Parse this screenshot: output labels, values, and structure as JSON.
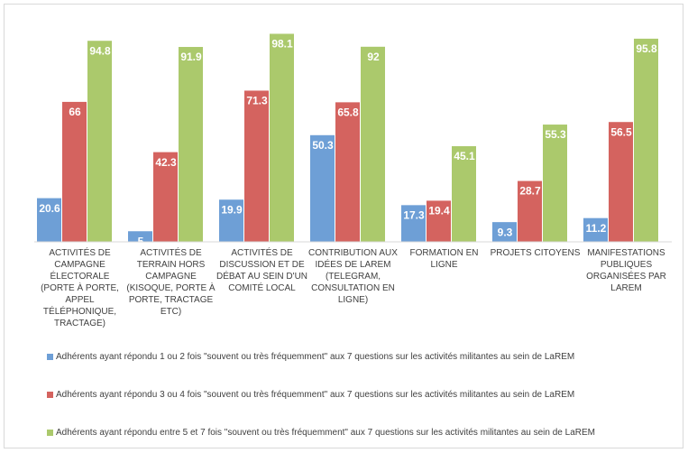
{
  "chart_data": {
    "type": "bar",
    "categories": [
      "Activités de campagne électorale (porte à porte, appel téléphonique, tractage)",
      "Activités de terrain hors campagne (kisoque, porte à porte, tractage etc)",
      "Activités de discussion et de débat au sein d'un comité local",
      "Contribution aux idées de LaREM (telegram, consultation en ligne)",
      "Formation en ligne",
      "Projets citoyens",
      "Manifestations publiques organisées par LaREM"
    ],
    "series": [
      {
        "name": "Adhérents ayant répondu 1 ou 2 fois \"souvent ou très fréquemment\" aux 7 questions sur les activités militantes au sein de LaREM",
        "color": "#6e9fd6",
        "values": [
          20.6,
          5,
          19.9,
          50.3,
          17.3,
          9.3,
          11.2
        ]
      },
      {
        "name": "Adhérents ayant répondu 3 ou 4 fois \"souvent ou très fréquemment\" aux 7 questions sur les activités militantes au sein de LaREM",
        "color": "#d4635f",
        "values": [
          66,
          42.3,
          71.3,
          65.8,
          19.4,
          28.7,
          56.5
        ]
      },
      {
        "name": "Adhérents ayant répondu entre 5 et 7 fois \"souvent ou très fréquemment\" aux 7 questions sur les activités militantes au sein de LaREM",
        "color": "#abc96c",
        "values": [
          94.8,
          91.9,
          98.1,
          92,
          45.1,
          55.3,
          95.8
        ]
      }
    ],
    "ylim": [
      0,
      100
    ],
    "legend": "bottom"
  }
}
